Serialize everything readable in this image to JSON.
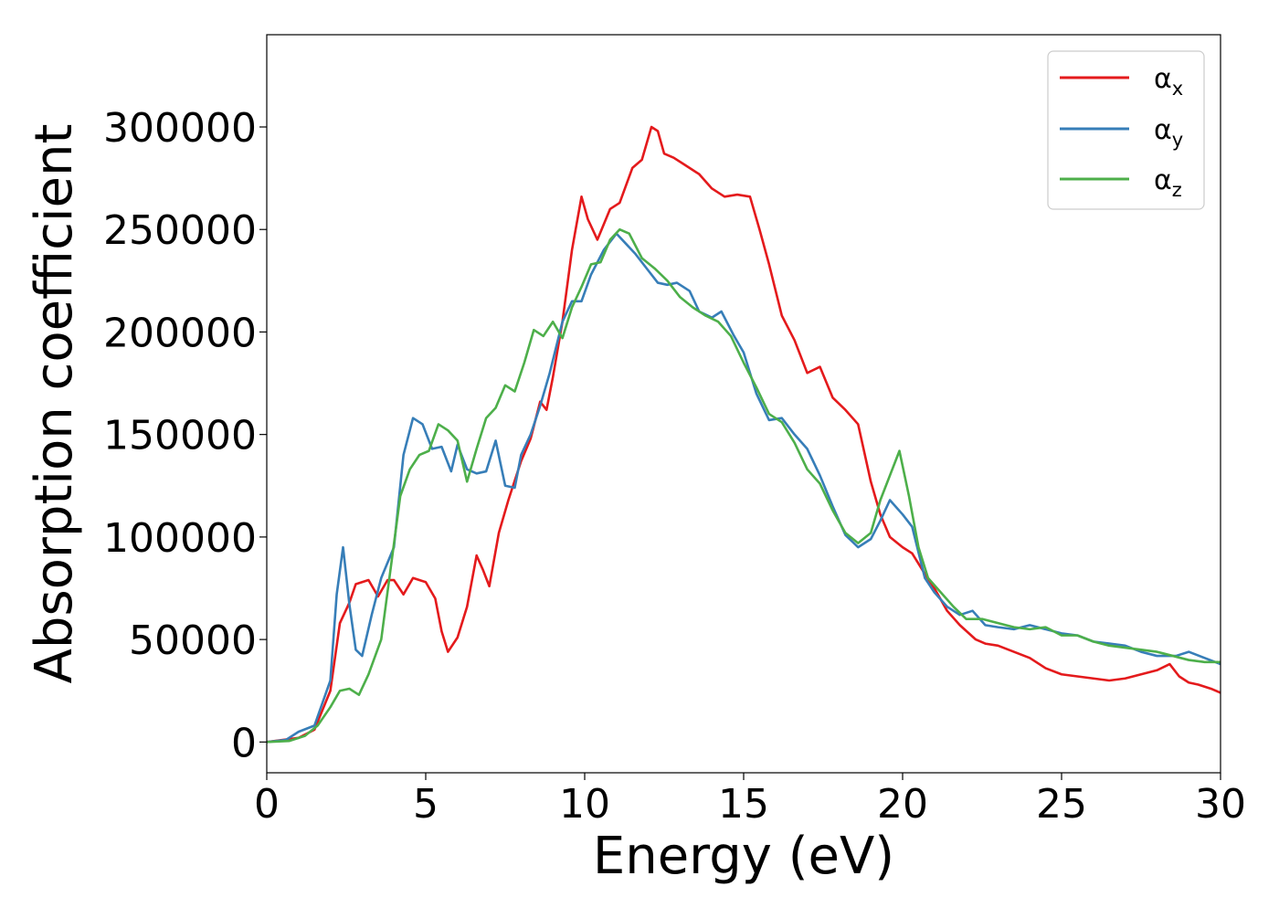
{
  "chart_data": {
    "type": "line",
    "title": "",
    "xlabel": "Energy (eV)",
    "ylabel": "Absorption coefficient",
    "xlim": [
      0,
      30
    ],
    "ylim": [
      -15000,
      345000
    ],
    "xticks": [
      0,
      5,
      10,
      15,
      20,
      25,
      30
    ],
    "yticks": [
      0,
      50000,
      100000,
      150000,
      200000,
      250000,
      300000
    ],
    "grid": false,
    "legend": {
      "position": "top-right"
    },
    "colors": {
      "alpha_x": "#e41a1c",
      "alpha_y": "#377eb8",
      "alpha_z": "#4daf4a"
    },
    "series": [
      {
        "key": "alpha_x",
        "name_main": "α",
        "name_sub": "x",
        "color": "#e41a1c",
        "x": [
          0,
          0.5,
          1,
          1.5,
          2,
          2.3,
          2.6,
          2.8,
          3,
          3.2,
          3.5,
          3.8,
          4,
          4.3,
          4.6,
          5,
          5.3,
          5.5,
          5.7,
          6,
          6.3,
          6.6,
          6.8,
          7,
          7.3,
          7.6,
          8,
          8.3,
          8.6,
          8.8,
          9,
          9.3,
          9.6,
          9.9,
          10.1,
          10.4,
          10.8,
          11.1,
          11.5,
          11.8,
          12.1,
          12.3,
          12.5,
          12.8,
          13.1,
          13.6,
          14,
          14.4,
          14.8,
          15.2,
          15.5,
          15.8,
          16.2,
          16.6,
          17,
          17.4,
          17.8,
          18.2,
          18.6,
          19,
          19.3,
          19.6,
          20,
          20.3,
          20.7,
          21,
          21.4,
          21.8,
          22.3,
          22.6,
          23,
          23.5,
          24,
          24.5,
          25,
          25.5,
          26,
          26.5,
          27,
          27.5,
          28,
          28.4,
          28.7,
          29,
          29.3,
          29.7,
          30
        ],
        "y": [
          0,
          1000,
          2000,
          6000,
          25000,
          58000,
          68000,
          77000,
          78000,
          79000,
          71000,
          79000,
          79000,
          72000,
          80000,
          78000,
          70000,
          54000,
          44000,
          51000,
          66000,
          91000,
          84000,
          76000,
          102000,
          118000,
          137000,
          148000,
          166000,
          162000,
          178000,
          205000,
          240000,
          266000,
          255000,
          245000,
          260000,
          263000,
          280000,
          284000,
          300000,
          298000,
          287000,
          285000,
          282000,
          277000,
          270000,
          266000,
          267000,
          266000,
          250000,
          233000,
          208000,
          196000,
          180000,
          183000,
          168000,
          162000,
          155000,
          127000,
          111000,
          100000,
          95000,
          92000,
          82000,
          75000,
          64000,
          57000,
          50000,
          48000,
          47000,
          44000,
          41000,
          36000,
          33000,
          32000,
          31000,
          30000,
          31000,
          33000,
          35000,
          38000,
          32000,
          29000,
          28000,
          26000,
          24000
        ]
      },
      {
        "key": "alpha_y",
        "name_main": "α",
        "name_sub": "y",
        "color": "#377eb8",
        "x": [
          0,
          0.6,
          1,
          1.5,
          2,
          2.2,
          2.4,
          2.6,
          2.8,
          3,
          3.3,
          3.6,
          4,
          4.3,
          4.6,
          4.9,
          5.2,
          5.5,
          5.8,
          6,
          6.3,
          6.6,
          6.9,
          7.2,
          7.5,
          7.8,
          8,
          8.3,
          8.6,
          8.9,
          9.3,
          9.6,
          9.9,
          10.2,
          10.6,
          11,
          11.3,
          11.6,
          12,
          12.3,
          12.6,
          12.9,
          13.3,
          13.6,
          14,
          14.3,
          14.7,
          15,
          15.4,
          15.8,
          16.2,
          16.6,
          17,
          17.4,
          17.8,
          18.2,
          18.6,
          19,
          19.3,
          19.6,
          20,
          20.3,
          20.7,
          21,
          21.4,
          21.8,
          22.2,
          22.6,
          23,
          23.5,
          24,
          24.5,
          25,
          25.5,
          26,
          26.5,
          27,
          27.5,
          28,
          28.6,
          29,
          29.5,
          30
        ],
        "y": [
          0,
          1000,
          5000,
          8000,
          30000,
          72000,
          95000,
          67000,
          45000,
          42000,
          62000,
          80000,
          95000,
          140000,
          158000,
          155000,
          143000,
          144000,
          132000,
          145000,
          133000,
          131000,
          132000,
          147000,
          125000,
          124000,
          140000,
          150000,
          164000,
          180000,
          205000,
          215000,
          215000,
          228000,
          240000,
          248000,
          243000,
          238000,
          230000,
          224000,
          223000,
          224000,
          220000,
          210000,
          207000,
          210000,
          198000,
          190000,
          170000,
          157000,
          158000,
          150000,
          143000,
          130000,
          115000,
          101000,
          95000,
          99000,
          108000,
          118000,
          111000,
          105000,
          80000,
          73000,
          66000,
          62000,
          64000,
          57000,
          56000,
          55000,
          57000,
          55000,
          53000,
          52000,
          49000,
          48000,
          47000,
          44000,
          42000,
          42000,
          44000,
          41000,
          38000
        ]
      },
      {
        "key": "alpha_z",
        "name_main": "α",
        "name_sub": "z",
        "color": "#4daf4a",
        "x": [
          0,
          0.7,
          1.2,
          1.6,
          2,
          2.3,
          2.6,
          2.9,
          3.2,
          3.6,
          3.9,
          4.2,
          4.5,
          4.8,
          5.1,
          5.4,
          5.7,
          6,
          6.3,
          6.6,
          6.9,
          7.2,
          7.5,
          7.8,
          8.1,
          8.4,
          8.7,
          9,
          9.3,
          9.6,
          9.9,
          10.2,
          10.5,
          10.8,
          11.1,
          11.4,
          11.8,
          12.2,
          12.6,
          13,
          13.4,
          13.8,
          14.2,
          14.6,
          15,
          15.4,
          15.8,
          16.2,
          16.6,
          17,
          17.4,
          17.8,
          18.2,
          18.6,
          19,
          19.3,
          19.6,
          19.9,
          20.2,
          20.5,
          20.8,
          21.2,
          21.6,
          22,
          22.5,
          23,
          23.5,
          24,
          24.5,
          25,
          25.5,
          26,
          26.5,
          27,
          27.5,
          28,
          28.5,
          29,
          29.5,
          30
        ],
        "y": [
          0,
          500,
          3000,
          8000,
          17000,
          25000,
          26000,
          23000,
          33000,
          50000,
          85000,
          120000,
          133000,
          140000,
          142000,
          155000,
          152000,
          147000,
          127000,
          143000,
          158000,
          163000,
          174000,
          171000,
          185000,
          201000,
          198000,
          205000,
          197000,
          212000,
          222000,
          233000,
          234000,
          245000,
          250000,
          248000,
          236000,
          231000,
          225000,
          217000,
          212000,
          208000,
          205000,
          198000,
          185000,
          173000,
          160000,
          156000,
          146000,
          133000,
          126000,
          113000,
          102000,
          97000,
          102000,
          118000,
          130000,
          142000,
          120000,
          95000,
          80000,
          73000,
          66000,
          60000,
          60000,
          58000,
          56000,
          55000,
          56000,
          52000,
          52000,
          49000,
          47000,
          46000,
          45000,
          44000,
          42000,
          40000,
          39000,
          39000
        ]
      }
    ]
  }
}
